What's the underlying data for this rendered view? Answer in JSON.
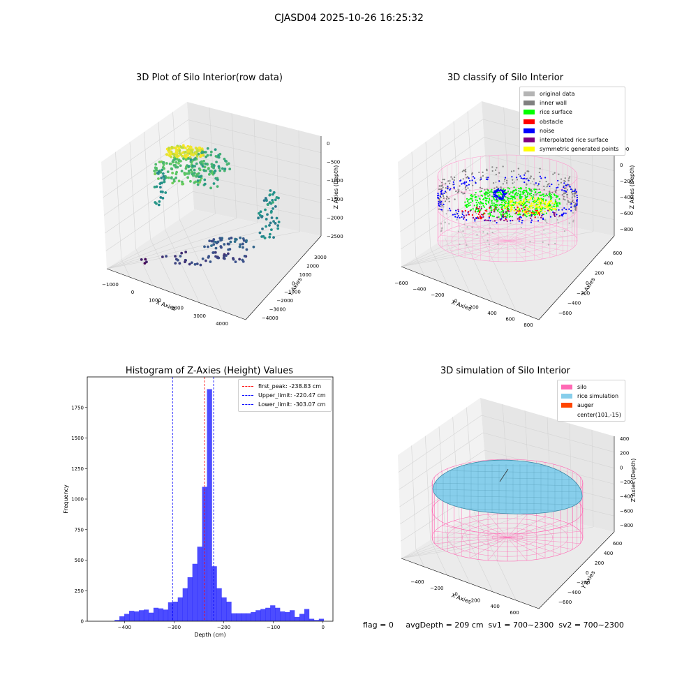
{
  "title": "CJASD04 2025-10-26 16:25:32",
  "plots": {
    "raw": {
      "title": "3D Plot of Silo Interior(row data)",
      "xlabel": "X Axies",
      "ylabel": "Y Axies",
      "zlabel": "Z Axies (Depth)",
      "xticks": [
        "−1000",
        "0",
        "1000",
        "2000",
        "3000",
        "4000"
      ],
      "yticks": [
        "3000",
        "2000",
        "1000",
        "0",
        "−1000",
        "−2000",
        "−3000",
        "−4000"
      ],
      "zticks": [
        "0",
        "−500",
        "−1000",
        "−1500",
        "−2000",
        "−2500"
      ]
    },
    "classify": {
      "title": "3D classify of Silo Interior",
      "xlabel": "X Axies",
      "ylabel": "Y Axies",
      "zlabel": "Z Axies (Depth)",
      "xticks": [
        "−600",
        "−400",
        "−200",
        "0",
        "200",
        "400",
        "600",
        "800"
      ],
      "yticks": [
        "600",
        "400",
        "200",
        "0",
        "−200",
        "−400",
        "−600"
      ],
      "zticks": [
        "200",
        "0",
        "−200",
        "−400",
        "−600",
        "−800"
      ],
      "legend": [
        {
          "label": "original data",
          "color": "#b4b4b4"
        },
        {
          "label": "inner wall",
          "color": "#808080"
        },
        {
          "label": "rice surface",
          "color": "#00ff00"
        },
        {
          "label": "obstacle",
          "color": "#ff0000"
        },
        {
          "label": "noise",
          "color": "#0000ff"
        },
        {
          "label": "interpolated rice surface",
          "color": "#800080"
        },
        {
          "label": "symmetric generated points",
          "color": "#ffff00"
        }
      ]
    },
    "simulation": {
      "title": "3D simulation of Silo Interior",
      "xlabel": "X Axies",
      "ylabel": "Y Axies",
      "zlabel": "Z Axies (Depth)",
      "xticks": [
        "−400",
        "−200",
        "0",
        "200",
        "400",
        "600"
      ],
      "yticks": [
        "600",
        "400",
        "200",
        "0",
        "−200",
        "−400",
        "−600"
      ],
      "zticks": [
        "400",
        "200",
        "0",
        "−200",
        "−400",
        "−600",
        "−800"
      ],
      "legend": [
        {
          "label": "silo",
          "color": "#ff69b4"
        },
        {
          "label": "rice simulation",
          "color": "#87ceeb"
        },
        {
          "label": "auger",
          "color": "#ff4500"
        },
        {
          "label": "center(101,-15)",
          "color": ""
        }
      ]
    }
  },
  "footer": "flag = 0     avgDepth = 209 cm  sv1 = 700~2300  sv2 = 700~2300",
  "colors": {
    "histogram": "#0000ff",
    "peak_line": "#ff0000",
    "limit_line": "#0000ff",
    "silo_wire": "#ff69b4",
    "rice": "#87ceeb"
  },
  "chart_data": [
    {
      "type": "bar",
      "title": "Histogram of Z-Axies (Height) Values",
      "xlabel": "Depth (cm)",
      "ylabel": "Frequency",
      "xlim": [
        -475,
        20
      ],
      "ylim": [
        0,
        2000
      ],
      "xticks": [
        -400,
        -300,
        -200,
        -100,
        0
      ],
      "yticks": [
        0,
        250,
        500,
        750,
        1000,
        1250,
        1500,
        1750
      ],
      "bin_width": 9.8,
      "bin_starts": [
        -420,
        -410.2,
        -400.4,
        -390.6,
        -380.8,
        -371,
        -361.2,
        -351.4,
        -341.6,
        -331.8,
        -322,
        -312.2,
        -302.4,
        -292.6,
        -282.8,
        -273,
        -263.2,
        -253.4,
        -243.6,
        -233.8,
        -224,
        -214.2,
        -204.4,
        -194.6,
        -184.8,
        -175,
        -165.2,
        -155.4,
        -145.6,
        -135.8,
        -126,
        -116.2,
        -106.4,
        -96.6,
        -86.8,
        -77,
        -67.2,
        -57.4,
        -47.6,
        -37.8,
        -28,
        -18.2,
        -8.4
      ],
      "values": [
        10,
        40,
        60,
        85,
        80,
        90,
        95,
        70,
        110,
        105,
        95,
        155,
        160,
        195,
        270,
        360,
        470,
        610,
        1100,
        1900,
        450,
        270,
        195,
        160,
        65,
        65,
        65,
        65,
        75,
        90,
        100,
        110,
        130,
        110,
        80,
        75,
        90,
        35,
        60,
        100,
        20,
        10,
        20
      ],
      "vlines": [
        {
          "label": "first_peak: -238.83 cm",
          "x": -238.83,
          "color": "#ff0000"
        },
        {
          "label": "Upper_limit: -220.47 cm",
          "x": -220.47,
          "color": "#0000ff"
        },
        {
          "label": "Lower_limit: -303.07 cm",
          "x": -303.07,
          "color": "#0000ff"
        }
      ],
      "legend_position": "upper right"
    }
  ]
}
